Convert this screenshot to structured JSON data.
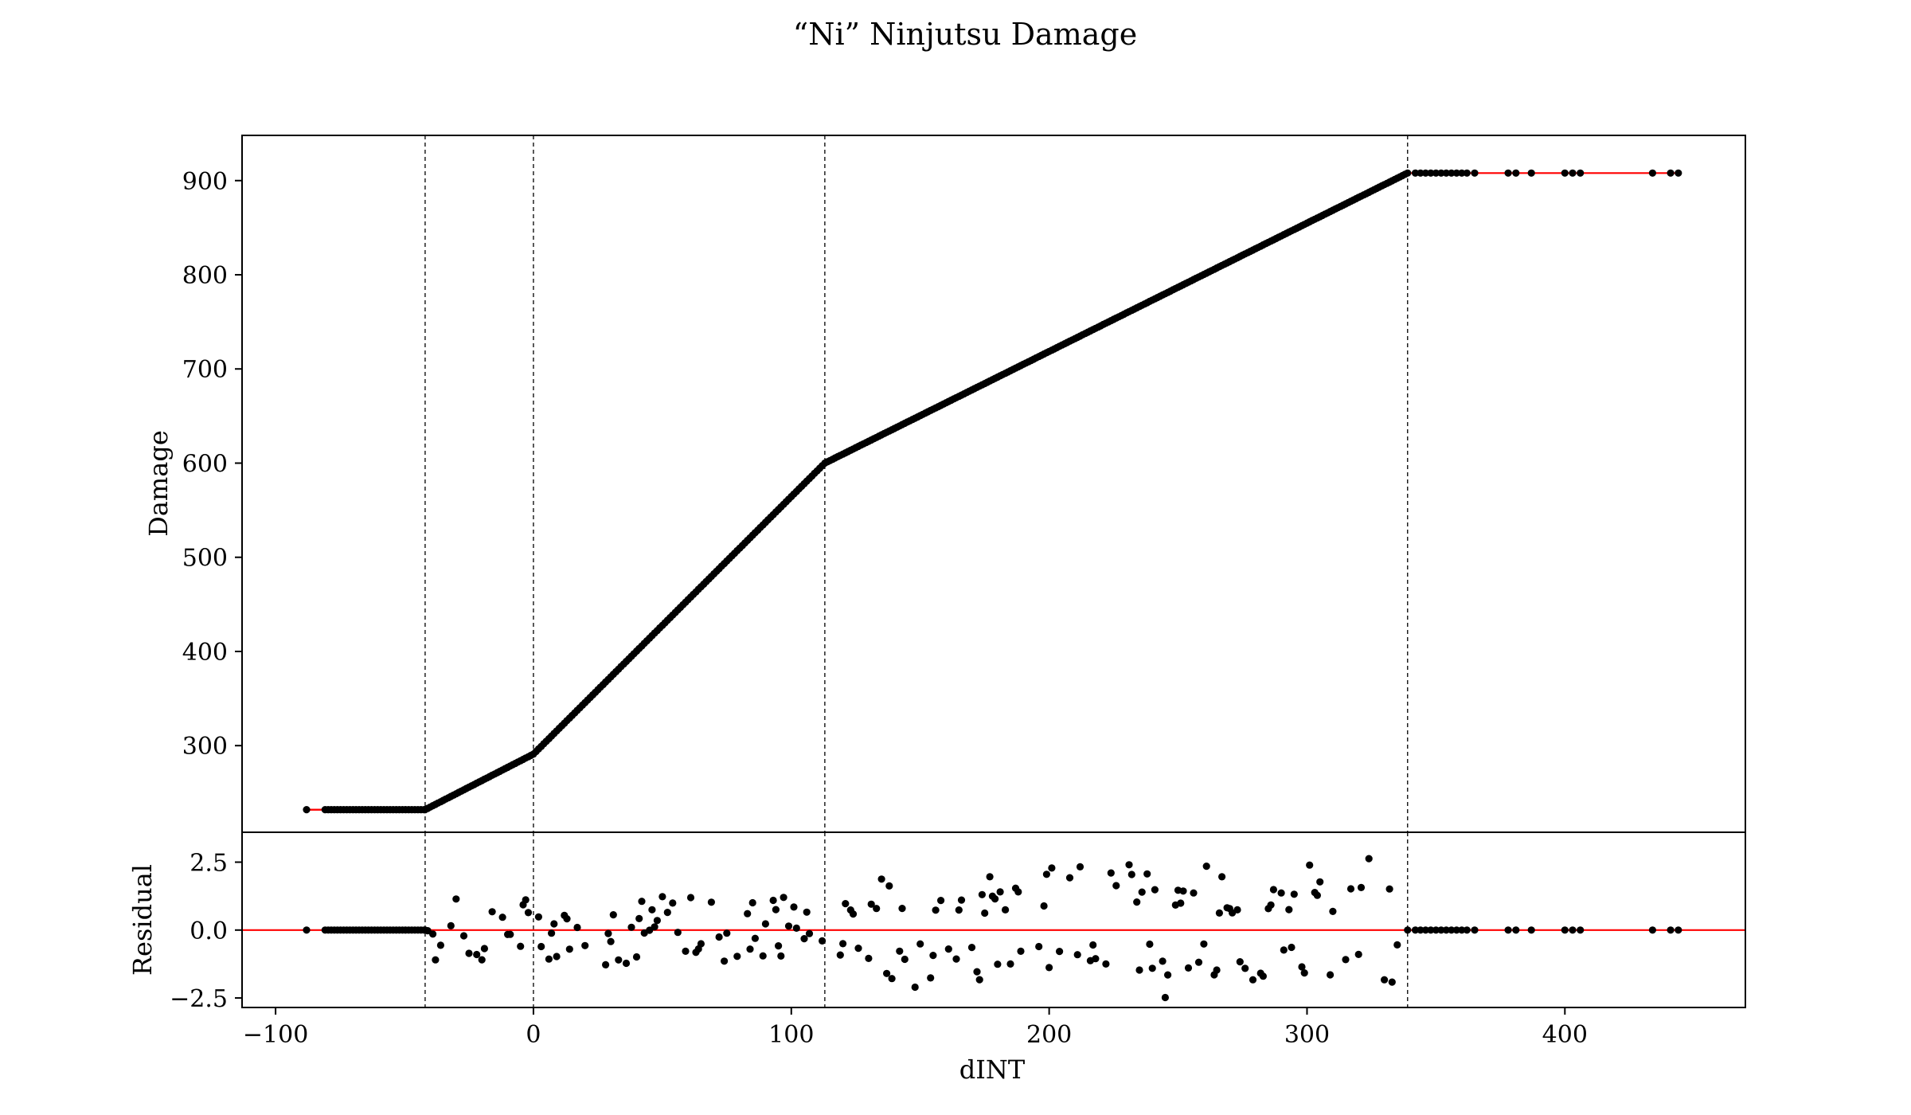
{
  "chart_data": [
    {
      "type": "scatter",
      "title": "“Ni” Ninjutsu Damage",
      "xlabel": "",
      "ylabel": "Damage",
      "xlim": [
        -113,
        470
      ],
      "ylim": [
        208,
        948
      ],
      "yticks": [
        300,
        400,
        500,
        600,
        700,
        800,
        900
      ],
      "grid": false,
      "vlines": [
        -42,
        0,
        113,
        339
      ],
      "fit_line_color": "#ff0000",
      "marker_color": "#000000",
      "fit_knots": [
        [
          -88,
          232
        ],
        [
          -42,
          232
        ],
        [
          0,
          291
        ],
        [
          113,
          600
        ],
        [
          339,
          908
        ],
        [
          445,
          908
        ]
      ],
      "x_points": [
        -88,
        -86,
        -80,
        -78,
        -76,
        -74,
        -72,
        -70,
        -68,
        -66,
        -64,
        -62,
        -60,
        -58,
        -56,
        -54,
        -52,
        -50,
        -48,
        -46,
        -44,
        -42,
        -40,
        -36,
        -32,
        -28,
        -24,
        -20,
        -16,
        -12,
        -8,
        -4,
        0,
        4,
        8,
        12,
        16,
        20,
        24,
        28,
        32,
        36,
        40,
        44,
        48,
        52,
        56,
        60,
        64,
        68,
        72,
        76,
        80,
        84,
        88,
        92,
        96,
        100,
        104,
        108,
        112,
        116,
        120,
        126,
        132,
        138,
        144,
        150,
        156,
        162,
        168,
        174,
        180,
        186,
        192,
        198,
        204,
        210,
        216,
        222,
        228,
        234,
        240,
        246,
        252,
        258,
        264,
        270,
        276,
        282,
        288,
        294,
        300,
        306,
        312,
        318,
        324,
        330,
        336,
        339,
        342,
        344,
        346,
        348,
        350,
        352,
        354,
        356,
        358,
        360,
        362,
        365,
        378,
        381,
        387,
        400,
        403,
        406,
        434,
        441,
        444
      ]
    },
    {
      "type": "scatter",
      "title": "",
      "xlabel": "dINT",
      "ylabel": "Residual",
      "xlim": [
        -113,
        470
      ],
      "ylim": [
        -2.85,
        3.6
      ],
      "xticks": [
        -100,
        0,
        100,
        200,
        300,
        400
      ],
      "xtick_labels": [
        "−100",
        "0",
        "100",
        "200",
        "300",
        "400"
      ],
      "yticks": [
        -2.5,
        0.0,
        2.5
      ],
      "ytick_labels": [
        "−2.5",
        "0.0",
        "2.5"
      ],
      "grid": false,
      "zero_line_color": "#ff0000",
      "residual_amplitude": {
        "-42_to_113": 1.3,
        "113_to_339": 2.6
      }
    }
  ]
}
